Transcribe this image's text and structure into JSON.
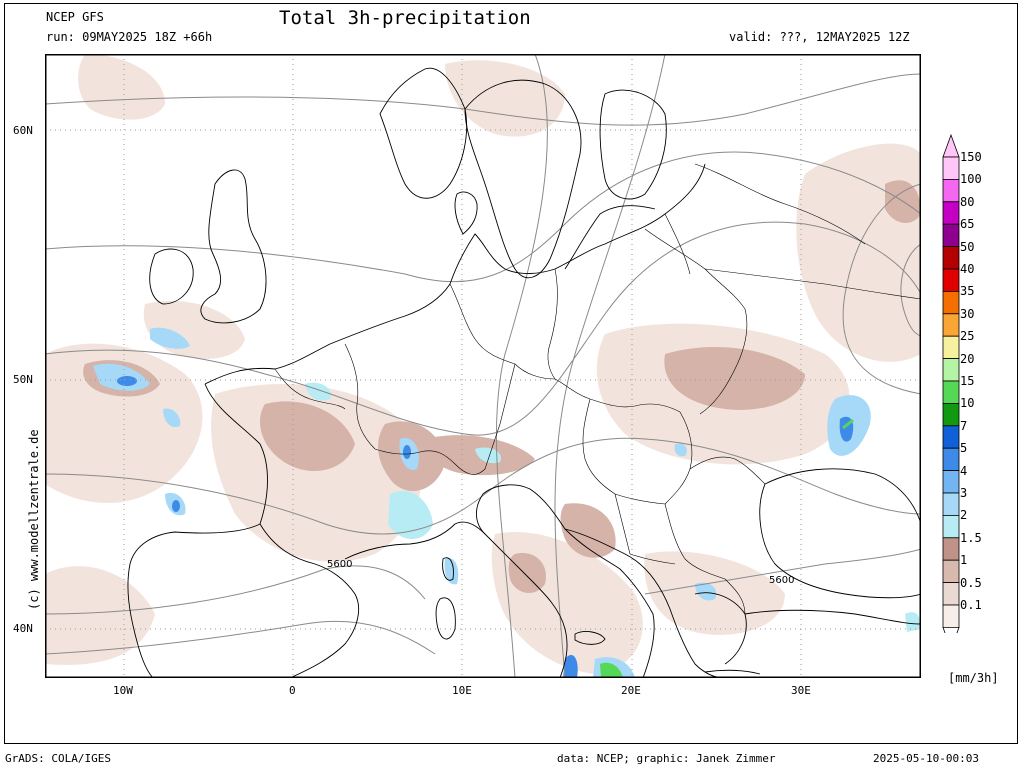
{
  "header": {
    "model": "NCEP GFS",
    "run": "run: 09MAY2025 18Z +66h",
    "title": "Total 3h-precipitation",
    "valid": "valid: ???, 12MAY2025 12Z"
  },
  "axes": {
    "lat_labels": [
      "60N",
      "50N",
      "40N"
    ],
    "lon_labels": [
      "10W",
      "0",
      "10E",
      "20E",
      "30E"
    ]
  },
  "isobar_labels": [
    "5600",
    "5600"
  ],
  "side_credit": "(c) www.modellzentrale.de",
  "legend": {
    "unit": "[mm/3h]",
    "levels": [
      {
        "label": "150",
        "color": "#ffc6f7"
      },
      {
        "label": "100",
        "color": "#f467f0"
      },
      {
        "label": "80",
        "color": "#c400c4"
      },
      {
        "label": "65",
        "color": "#8e008e"
      },
      {
        "label": "50",
        "color": "#b40000"
      },
      {
        "label": "40",
        "color": "#e00000"
      },
      {
        "label": "35",
        "color": "#f56f00"
      },
      {
        "label": "30",
        "color": "#f9a637"
      },
      {
        "label": "25",
        "color": "#f7f19f"
      },
      {
        "label": "20",
        "color": "#b4f4a4"
      },
      {
        "label": "15",
        "color": "#55d855"
      },
      {
        "label": "10",
        "color": "#119a11"
      },
      {
        "label": "7",
        "color": "#1060d8"
      },
      {
        "label": "5",
        "color": "#3d8ae8"
      },
      {
        "label": "4",
        "color": "#73b5f2"
      },
      {
        "label": "3",
        "color": "#a6d9f7"
      },
      {
        "label": "2",
        "color": "#b7ecf4"
      },
      {
        "label": "1.5",
        "color": "#bf9388"
      },
      {
        "label": "1",
        "color": "#d8b9ae"
      },
      {
        "label": "0.5",
        "color": "#ead9d2"
      },
      {
        "label": "0.1",
        "color": "#f7eee9"
      }
    ]
  },
  "footer": {
    "left": "GrADS: COLA/IGES",
    "center": "data: NCEP; graphic: Janek Zimmer",
    "right": "2025-05-10-00:03"
  }
}
